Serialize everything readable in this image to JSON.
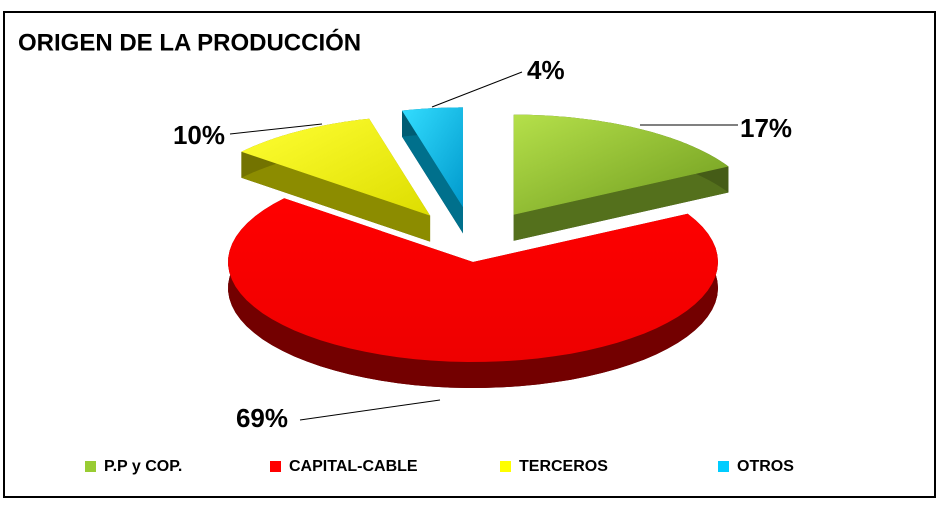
{
  "chart_data": {
    "type": "pie",
    "title": "ORIGEN DE LA PRODUCCIÓN",
    "categories": [
      "P.P y COP.",
      "CAPITAL-CABLE",
      "TERCEROS",
      "OTROS"
    ],
    "values": [
      17,
      69,
      10,
      4
    ],
    "value_labels": [
      "17%",
      "69%",
      "10%",
      "4%"
    ],
    "colors": [
      "#99cc33",
      "#ff0000",
      "#ffff00",
      "#00ccff"
    ],
    "legend": "bottom"
  }
}
